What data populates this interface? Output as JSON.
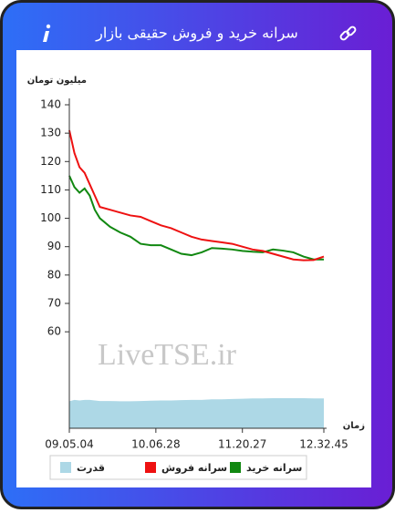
{
  "header": {
    "title": "سرانه خرید و فروش حقیقی بازار"
  },
  "chart_data": {
    "type": "line",
    "y_label": "میلیون تومان",
    "x_label": "زمان",
    "watermark": "LiveTSE.ir",
    "x": [
      0,
      2,
      4,
      6,
      8,
      10,
      12,
      16,
      20,
      24,
      28,
      32,
      36,
      40,
      44,
      48,
      52,
      56,
      60,
      64,
      68,
      72,
      76,
      80,
      84,
      88,
      92,
      96,
      100
    ],
    "xlim": [
      0,
      100
    ],
    "xticks": [
      {
        "value": 0,
        "label": "09.05.04"
      },
      {
        "value": 34,
        "label": "10.06.28"
      },
      {
        "value": 68,
        "label": "11.20.27"
      },
      {
        "value": 100,
        "label": "12.32.45"
      }
    ],
    "ylim": [
      26,
      140
    ],
    "yticks": [
      60,
      70,
      80,
      90,
      100,
      110,
      120,
      130,
      140
    ],
    "series": [
      {
        "name": "سرانه خرید",
        "color": "#118811",
        "kind": "line",
        "values": [
          115,
          111,
          109,
          110.5,
          108,
          103,
          100,
          97,
          95,
          93.5,
          91,
          90.5,
          90.5,
          89,
          87.5,
          87,
          88,
          89.5,
          89.3,
          89,
          88.5,
          88.2,
          88,
          89,
          88.6,
          88,
          86.5,
          85.5,
          85.5
        ]
      },
      {
        "name": "سرانه فروش",
        "color": "#ee1111",
        "kind": "line",
        "values": [
          131,
          123,
          118,
          116,
          112,
          108,
          104,
          103,
          102,
          101,
          100.5,
          99,
          97.5,
          96.5,
          95,
          93.5,
          92.5,
          92,
          91.5,
          91,
          90,
          89,
          88.5,
          87.5,
          86.5,
          85.5,
          85.2,
          85.3,
          86.5
        ]
      },
      {
        "name": "قدرت",
        "color": "#add8e6",
        "kind": "area",
        "values": [
          35.5,
          36,
          35.8,
          36,
          36,
          35.8,
          35.6,
          35.6,
          35.5,
          35.5,
          35.6,
          35.7,
          35.8,
          35.8,
          35.9,
          36,
          36,
          36.2,
          36.2,
          36.3,
          36.4,
          36.5,
          36.5,
          36.6,
          36.6,
          36.6,
          36.6,
          36.5,
          36.5
        ]
      }
    ]
  }
}
